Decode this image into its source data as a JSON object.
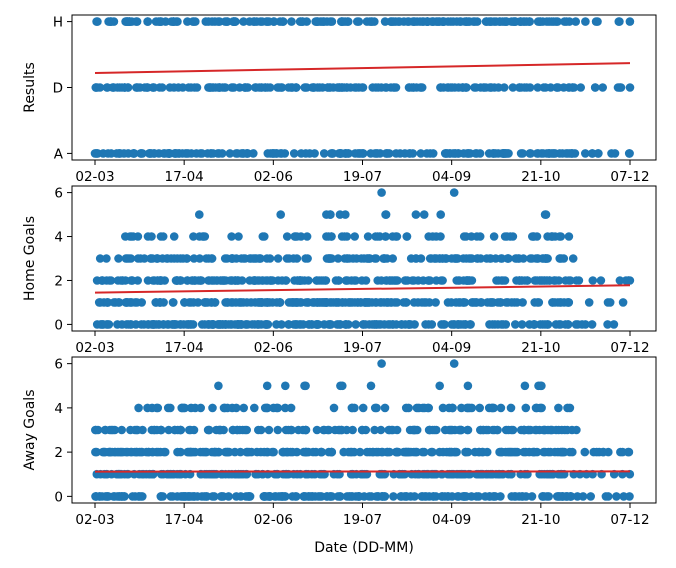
{
  "chart_data": [
    {
      "type": "scatter",
      "title": "",
      "xlabel": "",
      "ylabel": "Results",
      "x_ticks": [
        "02-03",
        "17-04",
        "02-06",
        "19-07",
        "04-09",
        "21-10",
        "07-12"
      ],
      "x_range_days": [
        0,
        280
      ],
      "y_categories": [
        "A",
        "D",
        "H"
      ],
      "ylim": [
        -0.1,
        2.1
      ],
      "point_color": "#1f77b4",
      "trend_color": "#d62728",
      "trend_line": {
        "start": 1.22,
        "end": 1.37
      },
      "levels": [
        2,
        1,
        0
      ],
      "grid": false
    },
    {
      "type": "scatter",
      "title": "",
      "xlabel": "",
      "ylabel": "Home Goals",
      "x_ticks": [
        "02-03",
        "17-04",
        "02-06",
        "19-07",
        "04-09",
        "21-10",
        "07-12"
      ],
      "x_range_days": [
        0,
        280
      ],
      "yticks": [
        0,
        2,
        4,
        6
      ],
      "ylim": [
        -0.3,
        6.3
      ],
      "point_color": "#1f77b4",
      "trend_color": "#d62728",
      "trend_line": {
        "start": 1.45,
        "end": 1.78
      },
      "levels": [
        0,
        1,
        2,
        3,
        4,
        5,
        6
      ],
      "grid": false
    },
    {
      "type": "scatter",
      "title": "",
      "xlabel": "Date (DD-MM)",
      "ylabel": "Away Goals",
      "x_ticks": [
        "02-03",
        "17-04",
        "02-06",
        "19-07",
        "04-09",
        "21-10",
        "07-12"
      ],
      "x_range_days": [
        0,
        280
      ],
      "yticks": [
        0,
        2,
        4,
        6
      ],
      "ylim": [
        -0.3,
        6.3
      ],
      "point_color": "#1f77b4",
      "trend_color": "#d62728",
      "trend_line": {
        "start": 1.12,
        "end": 1.13
      },
      "levels": [
        0,
        1,
        2,
        3,
        4,
        5,
        6
      ],
      "grid": false
    }
  ]
}
